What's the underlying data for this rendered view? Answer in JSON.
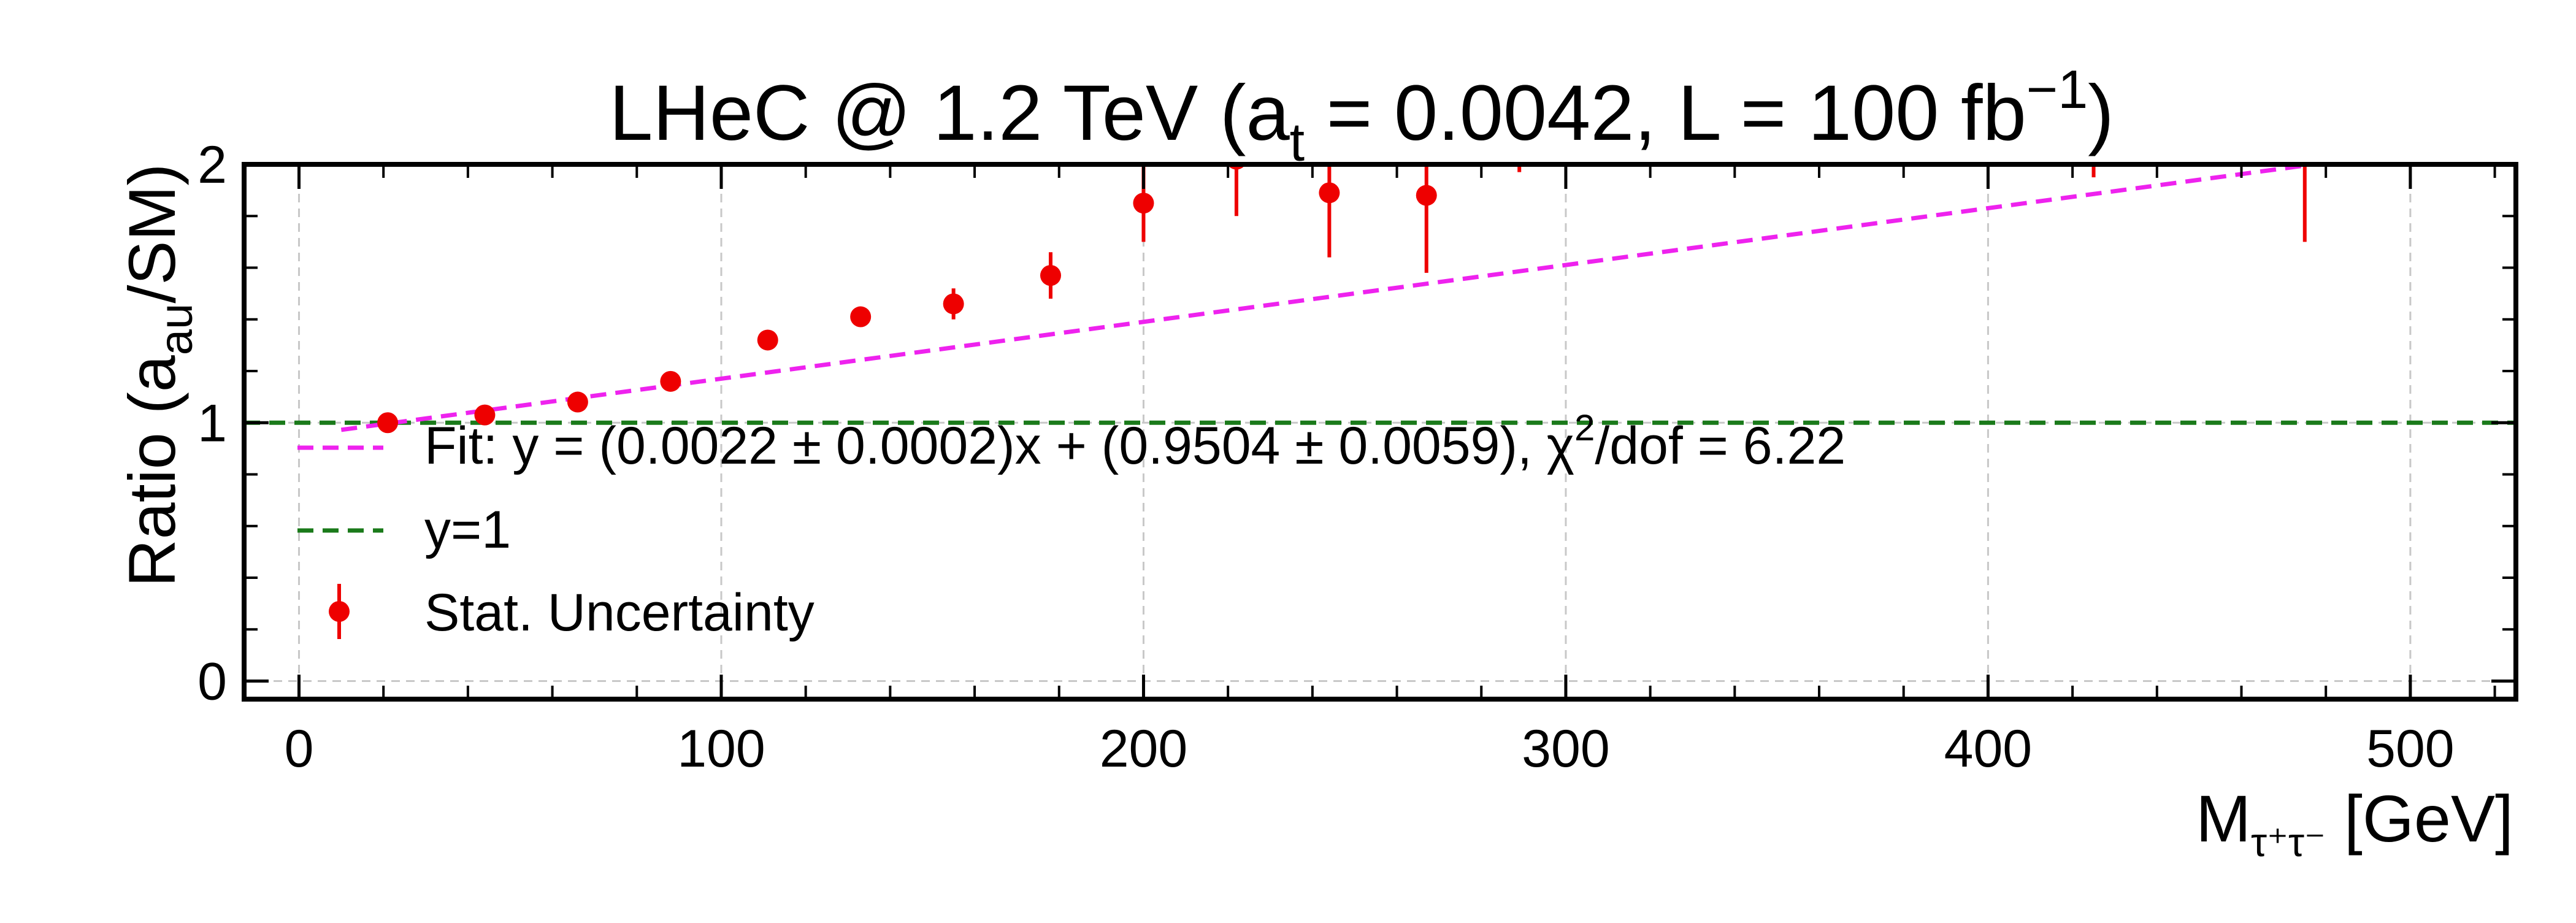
{
  "chart_data": {
    "type": "scatter",
    "title": {
      "main": "LHeC @ 1.2 TeV (a",
      "sub_t": "t",
      "mid": " = 0.0042, L = 100 fb",
      "sup": "−1",
      "end": ")"
    },
    "ylabel": {
      "main": "Ratio (a",
      "sub": "au",
      "end": "/SM)"
    },
    "xlabel": {
      "main": "M",
      "sub": "τ⁺τ⁻",
      "end": "  [GeV]"
    },
    "xlim": [
      -13,
      525
    ],
    "ylim": [
      -0.07,
      2.0
    ],
    "x_ticks": [
      0,
      100,
      200,
      300,
      400,
      500
    ],
    "x_tick_labels": [
      "0",
      "100",
      "200",
      "300",
      "400",
      "500"
    ],
    "x_minor_step": 20,
    "y_ticks": [
      0,
      1,
      2
    ],
    "y_tick_labels": [
      "0",
      "1",
      "2"
    ],
    "y_minor_step": 0.2,
    "grid": true,
    "colors": {
      "points": "#ee0000",
      "fit": "#ee22ee",
      "reference": "#1a7a1a"
    },
    "series": [
      {
        "name": "Stat. Uncertainty",
        "x": [
          21,
          44,
          66,
          88,
          111,
          133,
          155,
          178,
          200,
          222,
          244,
          267,
          289,
          425,
          475
        ],
        "y": [
          1.0,
          1.03,
          1.08,
          1.16,
          1.32,
          1.41,
          1.46,
          1.57,
          1.85,
          2.02,
          1.89,
          1.88,
          2.05,
          2.1,
          2.1
        ],
        "yerr": [
          0.01,
          0.015,
          0.02,
          0.03,
          0.03,
          0.035,
          0.06,
          0.09,
          0.15,
          0.22,
          0.25,
          0.3,
          0.08,
          0.15,
          0.4
        ]
      }
    ],
    "fit": {
      "slope": 0.0022,
      "intercept": 0.9504,
      "x_range": [
        10,
        475
      ],
      "legend": {
        "prefix": "Fit: y = (0.0022 ± 0.0002)x + (0.9504 ± 0.0059),  χ",
        "sup": "2",
        "suffix": "/dof = 6.22"
      }
    },
    "reference_line": {
      "y": 1,
      "label": "y=1"
    },
    "legend_position": "center-left"
  }
}
